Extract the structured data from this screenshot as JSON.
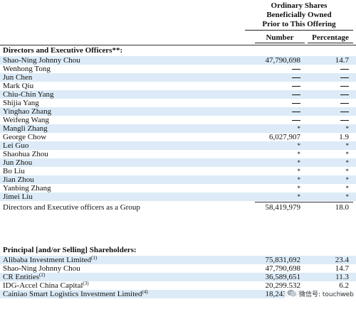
{
  "header": {
    "title_lines": [
      "Ordinary Shares",
      "Beneficially Owned",
      "Prior to This Offering"
    ],
    "col_number": "Number",
    "col_percentage": "Percentage"
  },
  "sections": {
    "directors_title": "Directors and Executive Officers**:",
    "principal_title": "Principal [and/or Selling] Shareholders:"
  },
  "directors": [
    {
      "name": "Shao-Ning Johnny Chou",
      "number": "47,790,698",
      "pct": "14.7",
      "type": "value"
    },
    {
      "name": "Wenhong Tong",
      "number": "—",
      "pct": "—",
      "type": "dash"
    },
    {
      "name": "Jun Chen",
      "number": "—",
      "pct": "—",
      "type": "dash"
    },
    {
      "name": "Mark Qiu",
      "number": "—",
      "pct": "—",
      "type": "dash"
    },
    {
      "name": "Chiu-Chin Yang",
      "number": "—",
      "pct": "—",
      "type": "dash"
    },
    {
      "name": "Shijia Yang",
      "number": "—",
      "pct": "—",
      "type": "dash"
    },
    {
      "name": "Yinghao Zhang",
      "number": "—",
      "pct": "—",
      "type": "dash"
    },
    {
      "name": "Weifeng Wang",
      "number": "—",
      "pct": "—",
      "type": "dash"
    },
    {
      "name": "Mangli Zhang",
      "number": "*",
      "pct": "*",
      "type": "star"
    },
    {
      "name": "George Chow",
      "number": "6,027,907",
      "pct": "1.9",
      "type": "value"
    },
    {
      "name": "Lei Guo",
      "number": "*",
      "pct": "*",
      "type": "star"
    },
    {
      "name": "Shaohua Zhou",
      "number": "*",
      "pct": "*",
      "type": "star"
    },
    {
      "name": "Jun Zhou",
      "number": "*",
      "pct": "*",
      "type": "star"
    },
    {
      "name": "Bo Liu",
      "number": "*",
      "pct": "*",
      "type": "star"
    },
    {
      "name": "Jian Zhou",
      "number": "*",
      "pct": "*",
      "type": "star"
    },
    {
      "name": "Yanbing Zhang",
      "number": "*",
      "pct": "*",
      "type": "star"
    },
    {
      "name": "Jimei Liu",
      "number": "*",
      "pct": "*",
      "type": "star"
    },
    {
      "name": "Directors and Executive officers as a Group",
      "number": "58,419,979",
      "pct": "18.0",
      "type": "value"
    }
  ],
  "principal": [
    {
      "name": "Alibaba Investment Limited",
      "sup": "(1)",
      "number": "75,831,692",
      "pct": "23.4",
      "type": "value"
    },
    {
      "name": "Shao-Ning Johnny Chou",
      "sup": "",
      "number": "47,790,698",
      "pct": "14.7",
      "type": "value"
    },
    {
      "name": "CR Entities",
      "sup": "(2)",
      "number": "36,589,651",
      "pct": "11.3",
      "type": "value"
    },
    {
      "name": "IDG-Accel China Capital",
      "sup": "(3)",
      "number": "20,299,532",
      "pct": "6.2",
      "type": "value"
    },
    {
      "name": "Cainiao Smart Logistics Investment Limited",
      "sup": "(4)",
      "number": "18,243,557",
      "pct": "5.6",
      "type": "value"
    }
  ],
  "watermark": {
    "text": "微信号: touchweb"
  }
}
